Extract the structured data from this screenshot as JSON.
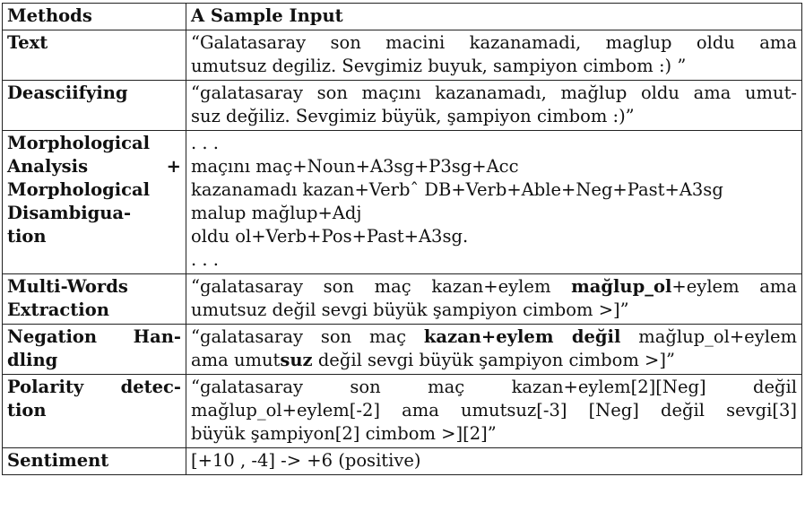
{
  "header": {
    "col1": "Methods",
    "col2": "A Sample Input"
  },
  "rows": [
    {
      "method": [
        "Text"
      ],
      "sample": [
        [
          {
            "t": "“Galatasaray son macini kazanamadi, maglup oldu ama"
          }
        ],
        [
          {
            "t": "umutsuz degiliz. Sevgimiz buyuk, sampiyon cimbom :) ”"
          }
        ]
      ]
    },
    {
      "method": [
        "Deasciifying"
      ],
      "sample": [
        [
          {
            "t": "“galatasaray son maçını kazanamadı, mağlup oldu ama umut-"
          }
        ],
        [
          {
            "t": "suz değiliz. Sevgimiz büyük, şampiyon cimbom :)”"
          }
        ]
      ]
    },
    {
      "method": [
        "Morphological",
        "Analysis +",
        "Morphological",
        "Disambigua-",
        "tion"
      ],
      "sample": [
        [
          {
            "t": ". . ."
          }
        ],
        [
          {
            "t": "maçını maç+Noun+A3sg+P3sg+Acc"
          }
        ],
        [
          {
            "t": "kazanamadı kazan+Verbˆ DB+Verb+Able+Neg+Past+A3sg"
          }
        ],
        [
          {
            "t": "malup mağlup+Adj"
          }
        ],
        [
          {
            "t": "oldu ol+Verb+Pos+Past+A3sg."
          }
        ],
        [
          {
            "t": ". . ."
          }
        ]
      ]
    },
    {
      "method": [
        "Multi-Words",
        "Extraction"
      ],
      "sample": [
        [
          {
            "t": "“galatasaray son maç kazan+eylem "
          },
          {
            "t": "mağlup_ol",
            "b": true
          },
          {
            "t": "+eylem ama"
          }
        ],
        [
          {
            "t": "umutsuz değil sevgi büyük şampiyon cimbom >]”"
          }
        ]
      ]
    },
    {
      "method": [
        "Negation Han-",
        "dling"
      ],
      "sample": [
        [
          {
            "t": "“galatasaray son maç "
          },
          {
            "t": "kazan+eylem değil",
            "b": true
          },
          {
            "t": " mağlup_ol+eylem"
          }
        ],
        [
          {
            "t": "ama umut"
          },
          {
            "t": "suz",
            "b": true
          },
          {
            "t": " değil sevgi büyük şampiyon cimbom >]”"
          }
        ]
      ]
    },
    {
      "method": [
        "Polarity detec-",
        "tion"
      ],
      "sample": [
        [
          {
            "t": "“galatasaray son maç kazan+eylem[2][Neg] değil"
          }
        ],
        [
          {
            "t": "mağlup_ol+eylem[-2] ama umutsuz[-3] [Neg] değil sevgi[3]"
          }
        ],
        [
          {
            "t": "büyük şampiyon[2] cimbom >][2]”"
          }
        ]
      ]
    },
    {
      "method": [
        "Sentiment"
      ],
      "sample": [
        [
          {
            "t": "[+10 , -4] -> +6 (positive)"
          }
        ]
      ]
    }
  ]
}
